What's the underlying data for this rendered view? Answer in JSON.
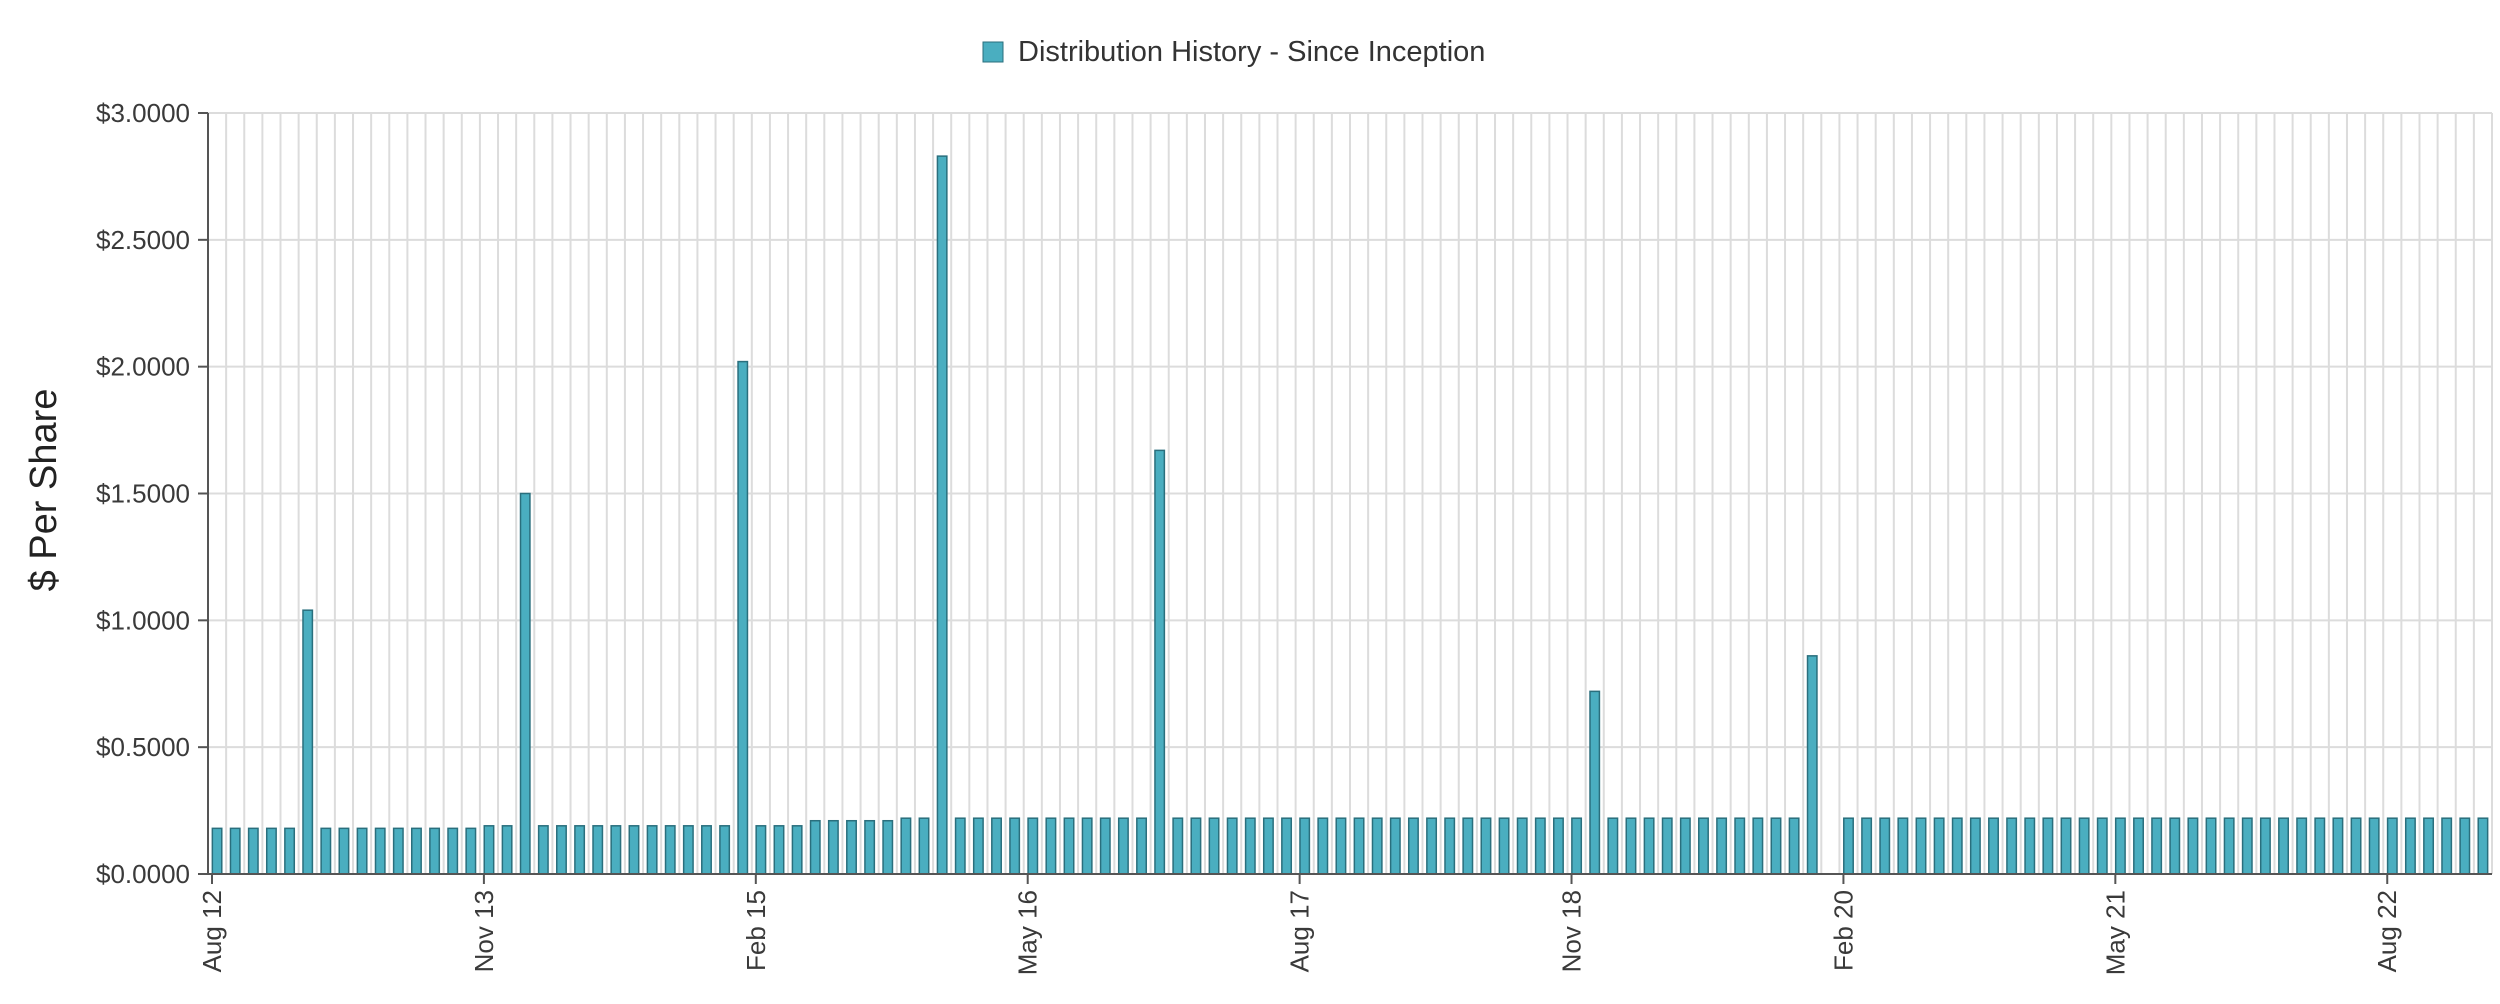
{
  "chart_data": {
    "type": "bar",
    "title": "",
    "legend": {
      "label": "Distribution History - Since Inception",
      "position": "top-center"
    },
    "xlabel": "",
    "ylabel": "$ Per Share",
    "ylim": [
      0,
      3
    ],
    "yticks": [
      0,
      0.5,
      1,
      1.5,
      2,
      2.5,
      3
    ],
    "ytick_labels": [
      "$0.0000",
      "$0.5000",
      "$1.0000",
      "$1.5000",
      "$2.0000",
      "$2.5000",
      "$3.0000"
    ],
    "xtick_labels": [
      {
        "label": "Aug 12",
        "index": 0
      },
      {
        "label": "Nov 13",
        "index": 15
      },
      {
        "label": "Feb 15",
        "index": 30
      },
      {
        "label": "May 16",
        "index": 45
      },
      {
        "label": "Aug 17",
        "index": 60
      },
      {
        "label": "Nov 18",
        "index": 75
      },
      {
        "label": "Feb 20",
        "index": 90
      },
      {
        "label": "May 21",
        "index": 105
      },
      {
        "label": "Aug 22",
        "index": 120
      }
    ],
    "grid": true,
    "colors": {
      "bar_fill": "#4aaec0",
      "bar_stroke": "#2a6f7d",
      "grid": "#dcdcdc",
      "axis": "#555555"
    },
    "series": [
      {
        "name": "Distribution History - Since Inception",
        "values": [
          0.18,
          0.18,
          0.18,
          0.18,
          0.18,
          1.04,
          0.18,
          0.18,
          0.18,
          0.18,
          0.18,
          0.18,
          0.18,
          0.18,
          0.18,
          0.19,
          0.19,
          1.5,
          0.19,
          0.19,
          0.19,
          0.19,
          0.19,
          0.19,
          0.19,
          0.19,
          0.19,
          0.19,
          0.19,
          2.02,
          0.19,
          0.19,
          0.19,
          0.21,
          0.21,
          0.21,
          0.21,
          0.21,
          0.22,
          0.22,
          2.83,
          0.22,
          0.22,
          0.22,
          0.22,
          0.22,
          0.22,
          0.22,
          0.22,
          0.22,
          0.22,
          0.22,
          1.67,
          0.22,
          0.22,
          0.22,
          0.22,
          0.22,
          0.22,
          0.22,
          0.22,
          0.22,
          0.22,
          0.22,
          0.22,
          0.22,
          0.22,
          0.22,
          0.22,
          0.22,
          0.22,
          0.22,
          0.22,
          0.22,
          0.22,
          0.22,
          0.72,
          0.22,
          0.22,
          0.22,
          0.22,
          0.22,
          0.22,
          0.22,
          0.22,
          0.22,
          0.22,
          0.22,
          0.86,
          0,
          0.22,
          0.22,
          0.22,
          0.22,
          0.22,
          0.22,
          0.22,
          0.22,
          0.22,
          0.22,
          0.22,
          0.22,
          0.22,
          0.22,
          0.22,
          0.22,
          0.22,
          0.22,
          0.22,
          0.22,
          0.22,
          0.22,
          0.22,
          0.22,
          0.22,
          0.22,
          0.22,
          0.22,
          0.22,
          0.22,
          0.22,
          0.22,
          0.22,
          0.22,
          0.22,
          0.22
        ]
      }
    ]
  }
}
